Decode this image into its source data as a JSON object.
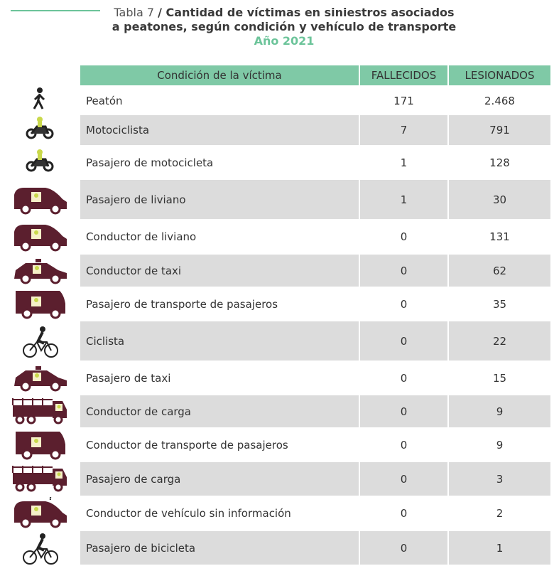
{
  "header": {
    "table_number": "Tabla 7",
    "title_line1": "/ Cantidad de víctimas en siniestros asociados",
    "title_line2": "a peatones, según condición y vehículo de transporte",
    "year": "Año 2021"
  },
  "table": {
    "columns": [
      "Condición de la víctima",
      "FALLECIDOS",
      "LESIONADOS"
    ],
    "rows": [
      [
        "Peatón",
        "171",
        "2.468"
      ],
      [
        "Motociclista",
        "7",
        "791"
      ],
      [
        "Pasajero de motocicleta",
        "1",
        "128"
      ],
      [
        "Pasajero de liviano",
        "1",
        "30"
      ],
      [
        "Conductor de liviano",
        "0",
        "131"
      ],
      [
        "Conductor de taxi",
        "0",
        "62"
      ],
      [
        "Pasajero de transporte de pasajeros",
        "0",
        "35"
      ],
      [
        "Ciclista",
        "0",
        "22"
      ],
      [
        "Pasajero de taxi",
        "0",
        "15"
      ],
      [
        "Conductor de carga",
        "0",
        "9"
      ],
      [
        "Conductor de transporte de pasajeros",
        "0",
        "9"
      ],
      [
        "Pasajero de carga",
        "0",
        "3"
      ],
      [
        "Conductor de vehículo sin información",
        "0",
        "2"
      ],
      [
        "Pasajero de bicicleta",
        "0",
        "1"
      ]
    ]
  }
}
